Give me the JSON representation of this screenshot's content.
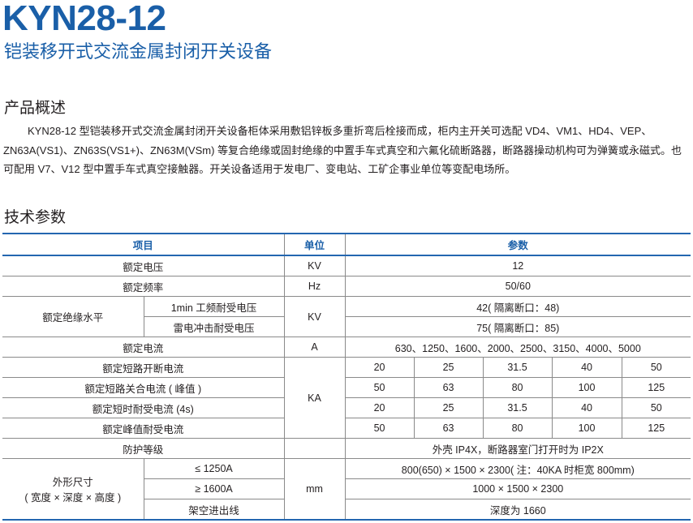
{
  "header": {
    "title": "KYN28-12",
    "subtitle": "铠装移开式交流金属封闭开关设备"
  },
  "overview": {
    "heading": "产品概述",
    "text": "KYN28-12 型铠装移开式交流金属封闭开关设备柜体采用敷铝锌板多重折弯后栓接而成，柜内主开关可选配 VD4、VM1、HD4、VEP、ZN63A(VS1)、ZN63S(VS1+)、ZN63M(VSm) 等复合绝缘或固封绝缘的中置手车式真空和六氟化硫断路器，断路器操动机构可为弹簧或永磁式。也可配用 V7、V12 型中置手车式真空接触器。开关设备适用于发电厂、变电站、工矿企事业单位等变配电场所。"
  },
  "specs": {
    "heading": "技术参数",
    "columns": [
      "项目",
      "单位",
      "参数"
    ],
    "rated_voltage": {
      "item": "额定电压",
      "unit": "KV",
      "value": "12"
    },
    "rated_frequency": {
      "item": "额定频率",
      "unit": "Hz",
      "value": "50/60"
    },
    "insulation": {
      "item": "额定绝缘水平",
      "unit": "KV",
      "sub": [
        {
          "item": "1min 工频耐受电压",
          "value": "42( 隔离断口：48)"
        },
        {
          "item": "雷电冲击耐受电压",
          "value": "75( 隔离断口：85)"
        }
      ]
    },
    "rated_current": {
      "item": "额定电流",
      "unit": "A",
      "value": "630、1250、1600、2000、2500、3150、4000、5000"
    },
    "ka_unit": "KA",
    "ka_rows": [
      {
        "item": "额定短路开断电流",
        "values": [
          "20",
          "25",
          "31.5",
          "40",
          "50"
        ]
      },
      {
        "item": "额定短路关合电流 ( 峰值 )",
        "values": [
          "50",
          "63",
          "80",
          "100",
          "125"
        ]
      },
      {
        "item": "额定短时耐受电流 (4s)",
        "values": [
          "20",
          "25",
          "31.5",
          "40",
          "50"
        ]
      },
      {
        "item": "额定峰值耐受电流",
        "values": [
          "50",
          "63",
          "80",
          "100",
          "125"
        ]
      }
    ],
    "protection": {
      "item": "防护等级",
      "value": "外壳 IP4X，断路器室门打开时为 IP2X"
    },
    "dimensions": {
      "item": "外形尺寸",
      "item_sub": "( 宽度 × 深度 × 高度 )",
      "unit": "mm",
      "sub": [
        {
          "item": "≤ 1250A",
          "value": "800(650) × 1500 × 2300( 注：40KA 时柜宽 800mm)"
        },
        {
          "item": "≥ 1600A",
          "value": "1000 × 1500 × 2300"
        },
        {
          "item": "架空进出线",
          "value": "深度为 1660"
        }
      ]
    }
  }
}
